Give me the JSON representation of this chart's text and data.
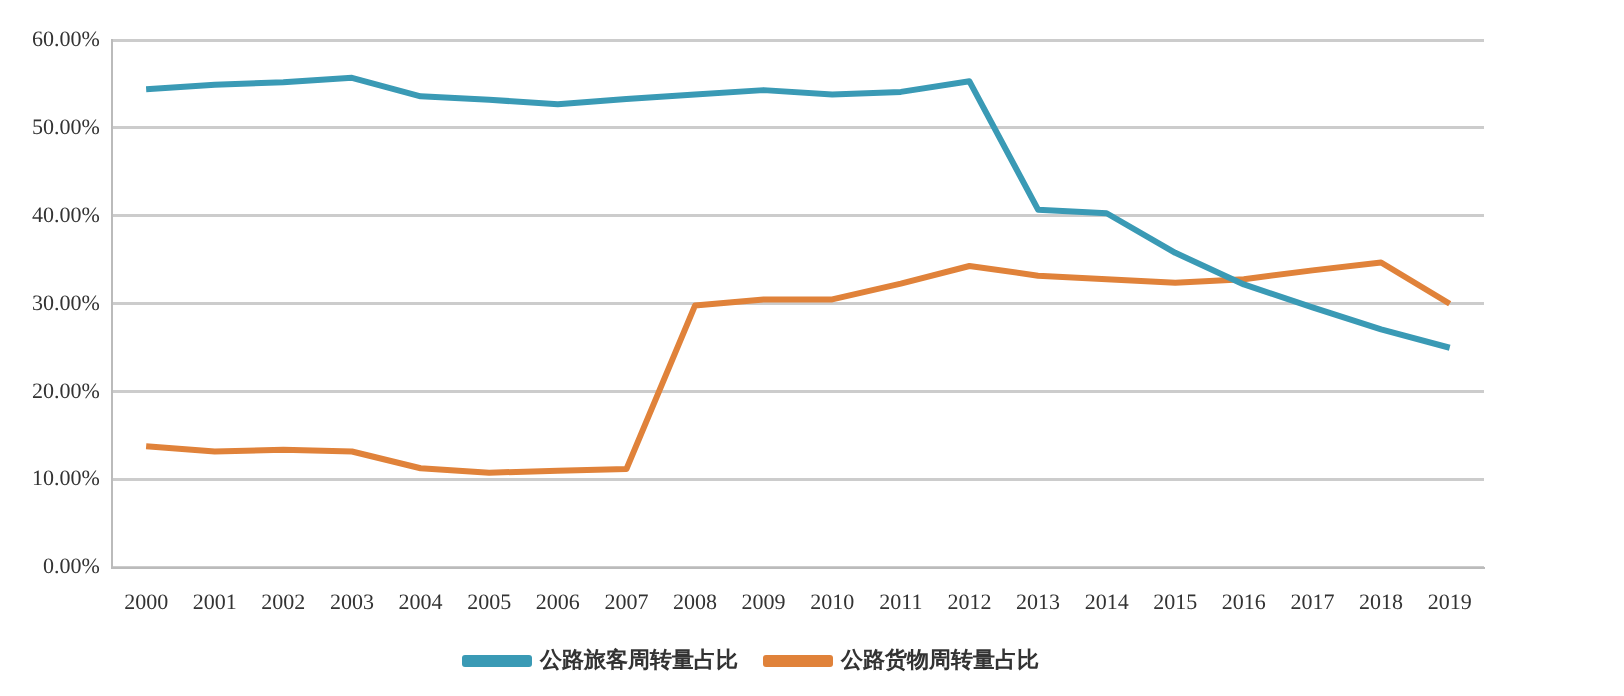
{
  "chart_data": {
    "type": "line",
    "categories": [
      "2000",
      "2001",
      "2002",
      "2003",
      "2004",
      "2005",
      "2006",
      "2007",
      "2008",
      "2009",
      "2010",
      "2011",
      "2012",
      "2013",
      "2014",
      "2015",
      "2016",
      "2017",
      "2018",
      "2019"
    ],
    "series": [
      {
        "name": "公路旅客周转量占比",
        "color": "#3a9ab5",
        "values": [
          54.4,
          54.9,
          55.2,
          55.7,
          53.6,
          53.2,
          52.7,
          53.3,
          53.8,
          54.3,
          53.8,
          54.1,
          55.3,
          40.7,
          40.3,
          35.8,
          32.2,
          29.6,
          27.1,
          25.0
        ]
      },
      {
        "name": "公路货物周转量占比",
        "color": "#e0823a",
        "values": [
          13.8,
          13.2,
          13.4,
          13.2,
          11.3,
          10.8,
          11.0,
          11.2,
          29.8,
          30.5,
          30.5,
          32.3,
          34.3,
          33.2,
          32.8,
          32.4,
          32.8,
          33.8,
          34.7,
          30.0
        ]
      }
    ],
    "ylim": [
      0,
      60
    ],
    "yticks": [
      {
        "value": 0,
        "label": "0.00%"
      },
      {
        "value": 10,
        "label": "10.00%"
      },
      {
        "value": 20,
        "label": "20.00%"
      },
      {
        "value": 30,
        "label": "30.00%"
      },
      {
        "value": 40,
        "label": "40.00%"
      },
      {
        "value": 50,
        "label": "50.00%"
      },
      {
        "value": 60,
        "label": "60.00%"
      }
    ],
    "grid": "y",
    "legend": "bottom",
    "marker": "none",
    "line_style": "solid"
  }
}
